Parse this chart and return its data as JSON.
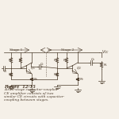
{
  "bg_color": "#f5f0e8",
  "line_color": "#4a3a2a",
  "title": "Figure  12-15",
  "caption_lines": [
    "A two-stage capacitor-coupled",
    "CE amplifier consists of two",
    "similar CE circuits with capacitor-",
    "coupling between stages."
  ],
  "figsize": [
    1.5,
    1.5
  ],
  "dpi": 100
}
